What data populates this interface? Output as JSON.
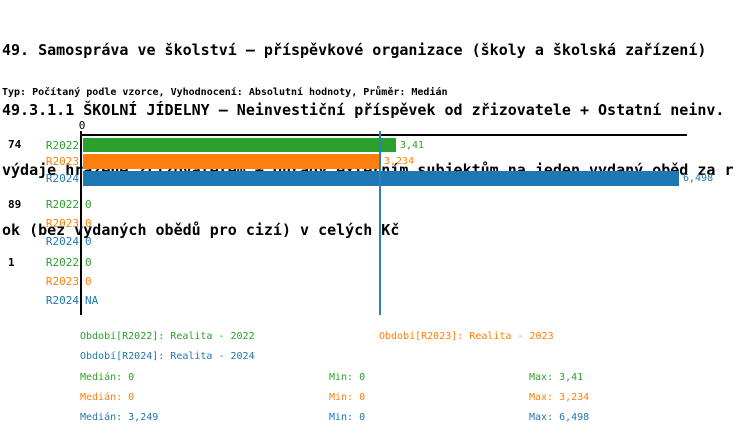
{
  "header": {
    "title_lines": [
      "49. Samospráva ve školství – příspěvkové organizace (školy a školská zařízení)",
      "49.3.1.1 ŠKOLNÍ JÍDELNY – Neinvestiční příspěvek od zřizovatele + Ostatní neinv.",
      "výdaje hrazené zřizovatelem + Úhrady externím subjektům na jeden vydaný oběd za r",
      "ok (bez vydaných obědů pro cizí) v celých Kč"
    ],
    "meta": "Typ: Počítaný podle vzorce, Vyhodnocení: Absolutní hodnoty, Průměr: Medián"
  },
  "colors": {
    "r2022": "#2ca02c",
    "r2023": "#ff7f0e",
    "r2024": "#1f77b4",
    "axis": "#000000",
    "median_line": "#2d7fbe",
    "background": "#ffffff"
  },
  "chart_data": {
    "type": "bar",
    "orientation": "horizontal",
    "x_axis": {
      "min": 0,
      "max_visible": 6.6,
      "tick_labels": [
        "0"
      ]
    },
    "median_line_value": 3.249,
    "series_names": [
      "R2022",
      "R2023",
      "R2024"
    ],
    "groups": [
      {
        "id": "74",
        "rows": [
          {
            "series": "R2022",
            "value": 3.41,
            "display": "3,41"
          },
          {
            "series": "R2023",
            "value": 3.234,
            "display": "3,234"
          },
          {
            "series": "R2024",
            "value": 6.498,
            "display": "6,498"
          }
        ]
      },
      {
        "id": "89",
        "rows": [
          {
            "series": "R2022",
            "value": 0,
            "display": "0"
          },
          {
            "series": "R2023",
            "value": 0,
            "display": "0"
          },
          {
            "series": "R2024",
            "value": 0,
            "display": "0"
          }
        ]
      },
      {
        "id": "1",
        "rows": [
          {
            "series": "R2022",
            "value": 0,
            "display": "0"
          },
          {
            "series": "R2023",
            "value": 0,
            "display": "0"
          },
          {
            "series": "R2024",
            "value": null,
            "display": "NA"
          }
        ]
      }
    ]
  },
  "legend": {
    "periods": [
      {
        "label": "Období[R2022]: Realita - 2022",
        "color_key": "r2022"
      },
      {
        "label": "Období[R2023]: Realita - 2023",
        "color_key": "r2023"
      },
      {
        "label": "Období[R2024]: Realita - 2024",
        "color_key": "r2024"
      }
    ],
    "stats": [
      {
        "median": "Medián: 0",
        "min": "Min: 0",
        "max": "Max: 3,41",
        "color_key": "r2022"
      },
      {
        "median": "Medián: 0",
        "min": "Min: 0",
        "max": "Max: 3,234",
        "color_key": "r2023"
      },
      {
        "median": "Medián: 3,249",
        "min": "Min: 0",
        "max": "Max: 6,498",
        "color_key": "r2024"
      }
    ]
  }
}
